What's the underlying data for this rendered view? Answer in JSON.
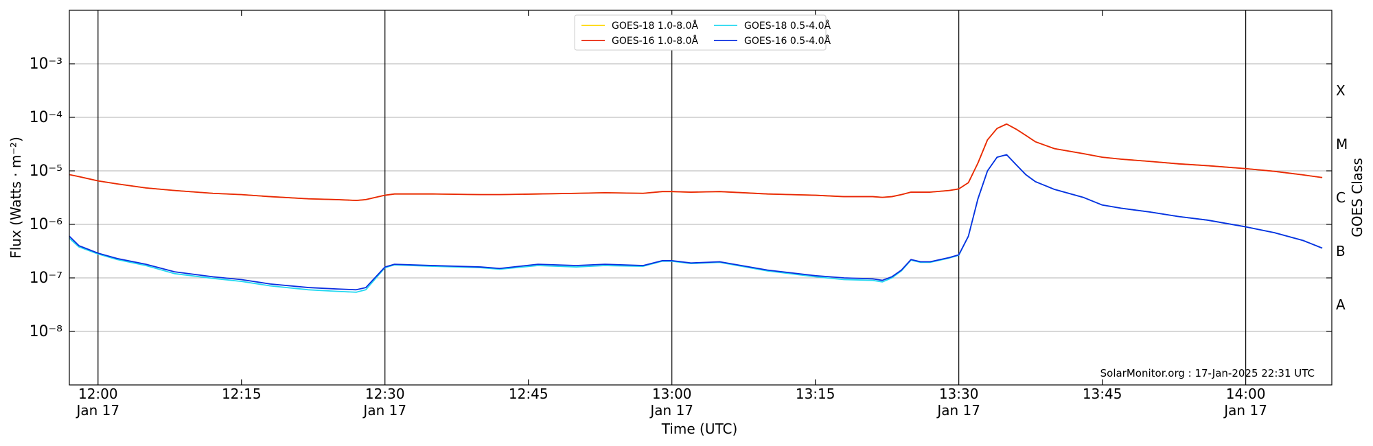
{
  "chart_data": {
    "type": "line",
    "ylabel": "Flux (Watts · m⁻²)",
    "y2label": "GOES Class",
    "xlabel": "Time (UTC)",
    "annotation": "SolarMonitor.org : 17-Jan-2025 22:31 UTC",
    "log_y": true,
    "grid": true,
    "legend": "upper center",
    "xlim": [
      "11:57",
      "14:09"
    ],
    "xticks": [
      {
        "value": "12:00",
        "label": "12:00\nJan 17"
      },
      {
        "value": "12:30",
        "label": "12:30\nJan 17"
      },
      {
        "value": "13:00",
        "label": "13:00\nJan 17"
      },
      {
        "value": "13:30",
        "label": "13:30\nJan 17"
      },
      {
        "value": "14:00",
        "label": "14:00\nJan 17"
      }
    ],
    "xminor_ticks": [
      "12:15",
      "12:45",
      "13:15",
      "13:45"
    ],
    "ylim": [
      1e-09,
      0.01
    ],
    "yticks": [
      {
        "value": 1e-08,
        "label": "10⁻⁸"
      },
      {
        "value": 1e-07,
        "label": "10⁻⁷"
      },
      {
        "value": 1e-06,
        "label": "10⁻⁶"
      },
      {
        "value": 1e-05,
        "label": "10⁻⁵"
      },
      {
        "value": 0.0001,
        "label": "10⁻⁴"
      },
      {
        "value": 0.001,
        "label": "10⁻³"
      }
    ],
    "y2lim": [
      1e-09,
      0.01
    ],
    "y2ticks": [
      {
        "value": 3.162e-08,
        "label": "A"
      },
      {
        "value": 3.162e-07,
        "label": "B"
      },
      {
        "value": 3.162e-06,
        "label": "C"
      },
      {
        "value": 3.162e-05,
        "label": "M"
      },
      {
        "value": 0.0003162,
        "label": "X"
      }
    ],
    "x": [
      "11:57",
      "11:58",
      "12:00",
      "12:02",
      "12:05",
      "12:08",
      "12:12",
      "12:15",
      "12:18",
      "12:22",
      "12:25",
      "12:27",
      "12:28",
      "12:30",
      "12:31",
      "12:35",
      "12:40",
      "12:42",
      "12:46",
      "12:50",
      "12:53",
      "12:57",
      "12:59",
      "13:00",
      "13:02",
      "13:05",
      "13:10",
      "13:15",
      "13:18",
      "13:21",
      "13:22",
      "13:23",
      "13:24",
      "13:25",
      "13:26",
      "13:27",
      "13:29",
      "13:30",
      "13:31",
      "13:32",
      "13:33",
      "13:34",
      "13:35",
      "13:36",
      "13:37",
      "13:38",
      "13:40",
      "13:43",
      "13:45",
      "13:47",
      "13:50",
      "13:53",
      "13:56",
      "14:00",
      "14:03",
      "14:06",
      "14:08"
    ],
    "series": [
      {
        "name": "GOES-18 1.0-8.0Å",
        "color": "#ffd700",
        "values": [
          8.5e-06,
          7.8e-06,
          6.5e-06,
          5.7e-06,
          4.8e-06,
          4.3e-06,
          3.8e-06,
          3.6e-06,
          3.3e-06,
          3e-06,
          2.9e-06,
          2.8e-06,
          2.9e-06,
          3.5e-06,
          3.7e-06,
          3.7e-06,
          3.6e-06,
          3.6e-06,
          3.7e-06,
          3.8e-06,
          3.9e-06,
          3.8e-06,
          4.1e-06,
          4.1e-06,
          4e-06,
          4.1e-06,
          3.7e-06,
          3.5e-06,
          3.3e-06,
          3.3e-06,
          3.2e-06,
          3.3e-06,
          3.6e-06,
          4e-06,
          4e-06,
          4e-06,
          4.3e-06,
          4.6e-06,
          6e-06,
          1.4e-05,
          3.8e-05,
          6.2e-05,
          7.5e-05,
          6e-05,
          4.6e-05,
          3.5e-05,
          2.6e-05,
          2.1e-05,
          1.8e-05,
          1.65e-05,
          1.5e-05,
          1.35e-05,
          1.25e-05,
          1.1e-05,
          9.8e-06,
          8.4e-06,
          7.5e-06
        ]
      },
      {
        "name": "GOES-16 1.0-8.0Å",
        "color": "#e8250a",
        "values": [
          8.5e-06,
          7.8e-06,
          6.5e-06,
          5.7e-06,
          4.8e-06,
          4.3e-06,
          3.8e-06,
          3.6e-06,
          3.3e-06,
          3e-06,
          2.9e-06,
          2.8e-06,
          2.9e-06,
          3.5e-06,
          3.7e-06,
          3.7e-06,
          3.6e-06,
          3.6e-06,
          3.7e-06,
          3.8e-06,
          3.9e-06,
          3.8e-06,
          4.1e-06,
          4.1e-06,
          4e-06,
          4.1e-06,
          3.7e-06,
          3.5e-06,
          3.3e-06,
          3.3e-06,
          3.2e-06,
          3.3e-06,
          3.6e-06,
          4e-06,
          4e-06,
          4e-06,
          4.3e-06,
          4.6e-06,
          6e-06,
          1.4e-05,
          3.8e-05,
          6.2e-05,
          7.5e-05,
          6e-05,
          4.6e-05,
          3.5e-05,
          2.6e-05,
          2.1e-05,
          1.8e-05,
          1.65e-05,
          1.5e-05,
          1.35e-05,
          1.25e-05,
          1.1e-05,
          9.8e-06,
          8.4e-06,
          7.5e-06
        ]
      },
      {
        "name": "GOES-18 0.5-4.0Å",
        "color": "#22d8f0",
        "values": [
          5.5e-07,
          3.8e-07,
          2.8e-07,
          2.2e-07,
          1.7e-07,
          1.2e-07,
          9.8e-08,
          8.6e-08,
          7.1e-08,
          6e-08,
          5.6e-08,
          5.4e-08,
          6e-08,
          1.55e-07,
          1.75e-07,
          1.65e-07,
          1.55e-07,
          1.45e-07,
          1.7e-07,
          1.6e-07,
          1.7e-07,
          1.65e-07,
          2.05e-07,
          2.05e-07,
          1.85e-07,
          1.95e-07,
          1.35e-07,
          1.05e-07,
          9.3e-08,
          9e-08,
          8.4e-08,
          1e-07,
          1.35e-07,
          2.15e-07,
          1.95e-07,
          1.95e-07,
          2.35e-07,
          2.65e-07,
          6e-07,
          3e-06,
          1e-05,
          1.8e-05,
          2e-05,
          1.3e-05,
          8.5e-06,
          6.3e-06,
          4.5e-06,
          3.2e-06,
          2.3e-06,
          2e-06,
          1.7e-06,
          1.4e-06,
          1.2e-06,
          9e-07,
          7e-07,
          5e-07,
          3.6e-07
        ]
      },
      {
        "name": "GOES-16 0.5-4.0Å",
        "color": "#0a2ee0",
        "values": [
          6e-07,
          4e-07,
          2.9e-07,
          2.3e-07,
          1.8e-07,
          1.3e-07,
          1.05e-07,
          9.3e-08,
          7.7e-08,
          6.6e-08,
          6.2e-08,
          6e-08,
          6.6e-08,
          1.6e-07,
          1.8e-07,
          1.7e-07,
          1.6e-07,
          1.5e-07,
          1.8e-07,
          1.7e-07,
          1.8e-07,
          1.7e-07,
          2.1e-07,
          2.1e-07,
          1.9e-07,
          2e-07,
          1.4e-07,
          1.1e-07,
          1e-07,
          9.6e-08,
          9e-08,
          1.05e-07,
          1.4e-07,
          2.2e-07,
          2e-07,
          2e-07,
          2.4e-07,
          2.7e-07,
          6e-07,
          3e-06,
          1e-05,
          1.8e-05,
          2e-05,
          1.3e-05,
          8.5e-06,
          6.3e-06,
          4.5e-06,
          3.2e-06,
          2.3e-06,
          2e-06,
          1.7e-06,
          1.4e-06,
          1.2e-06,
          9e-07,
          7e-07,
          5e-07,
          3.6e-07
        ]
      }
    ]
  }
}
